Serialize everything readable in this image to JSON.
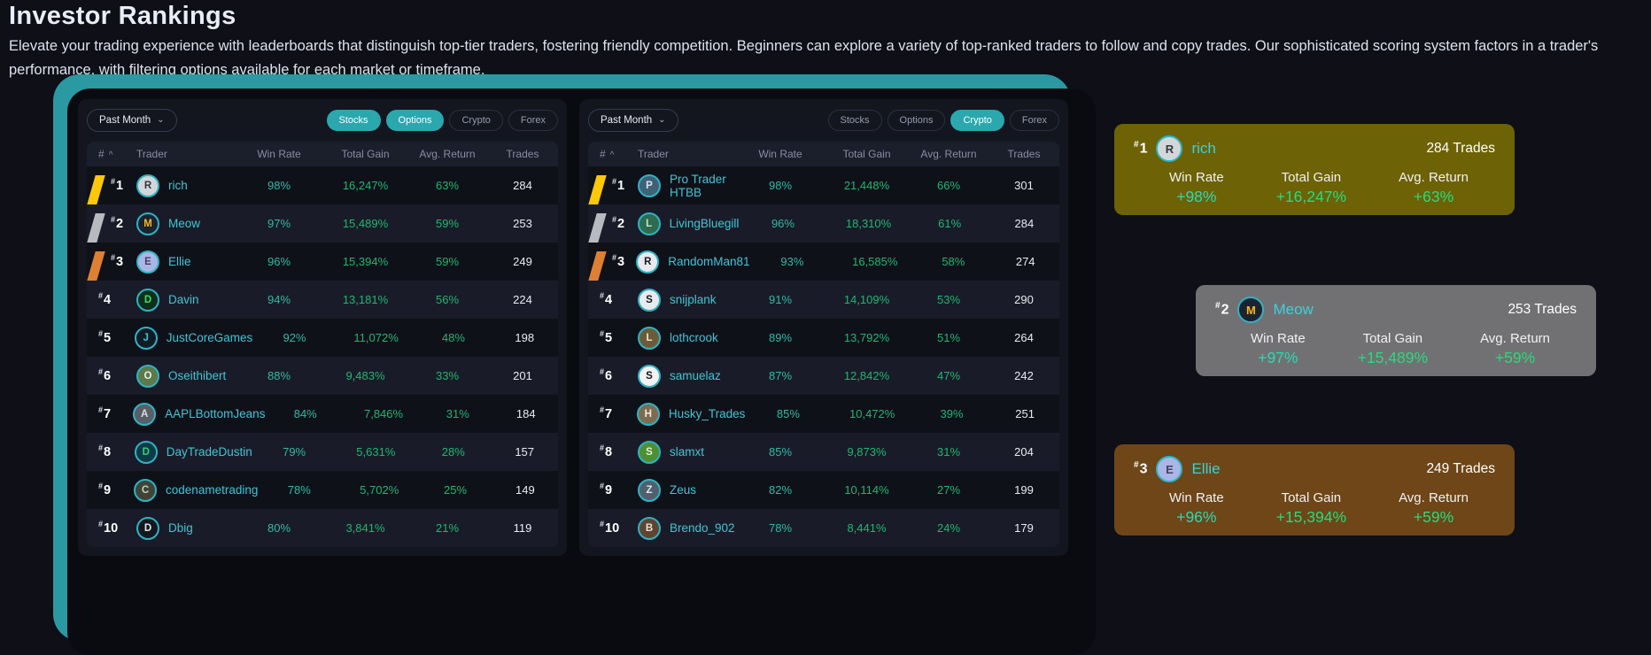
{
  "page": {
    "title": "Investor Rankings",
    "description": "Elevate your trading experience with leaderboards that distinguish top-tier traders, fostering friendly competition. Beginners can explore a variety of top-ranked traders to follow and copy trades. Our sophisticated scoring system factors in a trader's performance, with filtering options available for each market or timeframe."
  },
  "icons": {
    "chevron_down": "⌄",
    "sort_caret": "^"
  },
  "theme": {
    "accent_teal": "#2a99a1",
    "tab_active": "#2aa8ae",
    "win_rate_teal": "#2fb9a4",
    "gain_green": "#1eb671",
    "medal_gold": "#fdc70a",
    "medal_silver": "#b7babf",
    "medal_bronze": "#dd8033"
  },
  "leaderboards": [
    {
      "timeframe_filter": "Past Month",
      "tabs": [
        {
          "label": "Stocks",
          "active": true
        },
        {
          "label": "Options",
          "active": true
        },
        {
          "label": "Crypto",
          "active": false
        },
        {
          "label": "Forex",
          "active": false
        }
      ],
      "columns": [
        "#",
        "Trader",
        "Win Rate",
        "Total Gain",
        "Avg. Return",
        "Trades"
      ],
      "rows": [
        {
          "rank": "1",
          "medal": "gold",
          "trader": "rich",
          "avatar": {
            "bg": "#d3d7da",
            "fg": "#33363c",
            "initial": "R"
          },
          "win_rate": "98%",
          "total_gain": "16,247%",
          "avg_return": "63%",
          "trades": "284"
        },
        {
          "rank": "2",
          "medal": "silver",
          "trader": "Meow",
          "avatar": {
            "bg": "#1c2330",
            "fg": "#f6b81c",
            "initial": "M"
          },
          "win_rate": "97%",
          "total_gain": "15,489%",
          "avg_return": "59%",
          "trades": "253"
        },
        {
          "rank": "3",
          "medal": "bronze",
          "trader": "Ellie",
          "avatar": {
            "bg": "#a9b6e6",
            "fg": "#4a3f65",
            "initial": "E"
          },
          "win_rate": "96%",
          "total_gain": "15,394%",
          "avg_return": "59%",
          "trades": "249"
        },
        {
          "rank": "4",
          "medal": null,
          "trader": "Davin",
          "avatar": {
            "bg": "#0f2f1a",
            "fg": "#3ddc6a",
            "initial": "D"
          },
          "win_rate": "94%",
          "total_gain": "13,181%",
          "avg_return": "56%",
          "trades": "224"
        },
        {
          "rank": "5",
          "medal": null,
          "trader": "JustCoreGames",
          "avatar": {
            "bg": "#101b26",
            "fg": "#39c6d3",
            "initial": "J"
          },
          "win_rate": "92%",
          "total_gain": "11,072%",
          "avg_return": "48%",
          "trades": "198"
        },
        {
          "rank": "6",
          "medal": null,
          "trader": "Oseithibert",
          "avatar": {
            "bg": "#5d7a4a",
            "fg": "#e8eee2",
            "initial": "O"
          },
          "win_rate": "88%",
          "total_gain": "9,483%",
          "avg_return": "33%",
          "trades": "201"
        },
        {
          "rank": "7",
          "medal": null,
          "trader": "AAPLBottomJeans",
          "avatar": {
            "bg": "#5a5e66",
            "fg": "#d9dce2",
            "initial": "A"
          },
          "win_rate": "84%",
          "total_gain": "7,846%",
          "avg_return": "31%",
          "trades": "184"
        },
        {
          "rank": "8",
          "medal": null,
          "trader": "DayTradeDustin",
          "avatar": {
            "bg": "#0e3b46",
            "fg": "#35d07e",
            "initial": "D"
          },
          "win_rate": "79%",
          "total_gain": "5,631%",
          "avg_return": "28%",
          "trades": "157"
        },
        {
          "rank": "9",
          "medal": null,
          "trader": "codenametrading",
          "avatar": {
            "bg": "#3f4536",
            "fg": "#c9cdbf",
            "initial": "C"
          },
          "win_rate": "78%",
          "total_gain": "5,702%",
          "avg_return": "25%",
          "trades": "149"
        },
        {
          "rank": "10",
          "medal": null,
          "trader": "Dbig",
          "avatar": {
            "bg": "#14181f",
            "fg": "#e6e9ef",
            "initial": "D"
          },
          "win_rate": "80%",
          "total_gain": "3,841%",
          "avg_return": "21%",
          "trades": "119"
        }
      ]
    },
    {
      "timeframe_filter": "Past Month",
      "tabs": [
        {
          "label": "Stocks",
          "active": false
        },
        {
          "label": "Options",
          "active": false
        },
        {
          "label": "Crypto",
          "active": true
        },
        {
          "label": "Forex",
          "active": false
        }
      ],
      "columns": [
        "#",
        "Trader",
        "Win Rate",
        "Total Gain",
        "Avg. Return",
        "Trades"
      ],
      "rows": [
        {
          "rank": "1",
          "medal": "gold",
          "trader": "Pro Trader HTBB",
          "avatar": {
            "bg": "#3f6277",
            "fg": "#d7e4ee",
            "initial": "P"
          },
          "win_rate": "98%",
          "total_gain": "21,448%",
          "avg_return": "66%",
          "trades": "301"
        },
        {
          "rank": "2",
          "medal": "silver",
          "trader": "LivingBluegill",
          "avatar": {
            "bg": "#2e6b4f",
            "fg": "#bfe3d0",
            "initial": "L"
          },
          "win_rate": "96%",
          "total_gain": "18,310%",
          "avg_return": "61%",
          "trades": "284"
        },
        {
          "rank": "3",
          "medal": "bronze",
          "trader": "RandomMan81",
          "avatar": {
            "bg": "#e9eaee",
            "fg": "#15181e",
            "initial": "R"
          },
          "win_rate": "93%",
          "total_gain": "16,585%",
          "avg_return": "58%",
          "trades": "274"
        },
        {
          "rank": "4",
          "medal": null,
          "trader": "snijplank",
          "avatar": {
            "bg": "#e9eaee",
            "fg": "#15181e",
            "initial": "S"
          },
          "win_rate": "91%",
          "total_gain": "14,109%",
          "avg_return": "53%",
          "trades": "290"
        },
        {
          "rank": "5",
          "medal": null,
          "trader": "lothcrook",
          "avatar": {
            "bg": "#6b5b39",
            "fg": "#efe6d2",
            "initial": "L"
          },
          "win_rate": "89%",
          "total_gain": "13,792%",
          "avg_return": "51%",
          "trades": "264"
        },
        {
          "rank": "6",
          "medal": null,
          "trader": "samuelaz",
          "avatar": {
            "bg": "#f2f2f2",
            "fg": "#101318",
            "initial": "S"
          },
          "win_rate": "87%",
          "total_gain": "12,842%",
          "avg_return": "47%",
          "trades": "242"
        },
        {
          "rank": "7",
          "medal": null,
          "trader": "Husky_Trades",
          "avatar": {
            "bg": "#7d6c51",
            "fg": "#f3ead9",
            "initial": "H"
          },
          "win_rate": "85%",
          "total_gain": "10,472%",
          "avg_return": "39%",
          "trades": "251"
        },
        {
          "rank": "8",
          "medal": null,
          "trader": "slamxt",
          "avatar": {
            "bg": "#4e8f33",
            "fg": "#dff0d4",
            "initial": "S"
          },
          "win_rate": "85%",
          "total_gain": "9,873%",
          "avg_return": "31%",
          "trades": "204"
        },
        {
          "rank": "9",
          "medal": null,
          "trader": "Zeus",
          "avatar": {
            "bg": "#51606f",
            "fg": "#dfe7ee",
            "initial": "Z"
          },
          "win_rate": "82%",
          "total_gain": "10,114%",
          "avg_return": "27%",
          "trades": "199"
        },
        {
          "rank": "10",
          "medal": null,
          "trader": "Brendo_902",
          "avatar": {
            "bg": "#5f4432",
            "fg": "#eadfd5",
            "initial": "B"
          },
          "win_rate": "78%",
          "total_gain": "8,441%",
          "avg_return": "24%",
          "trades": "179"
        }
      ]
    }
  ],
  "top_cards": [
    {
      "rank": "1",
      "name": "rich",
      "trades_label": "284 Trades",
      "bg_color": "#6d6206",
      "avatar": {
        "bg": "#d3d7da",
        "fg": "#33363c",
        "initial": "R"
      },
      "stats": [
        {
          "label": "Win Rate",
          "value": "+98%",
          "color": "#2fd8b2"
        },
        {
          "label": "Total Gain",
          "value": "+16,247%",
          "color": "#2bd97d"
        },
        {
          "label": "Avg. Return",
          "value": "+63%",
          "color": "#2bd97d"
        }
      ]
    },
    {
      "rank": "2",
      "name": "Meow",
      "trades_label": "253 Trades",
      "bg_color": "#717174",
      "avatar": {
        "bg": "#1c2330",
        "fg": "#f6b81c",
        "initial": "M"
      },
      "stats": [
        {
          "label": "Win Rate",
          "value": "+97%",
          "color": "#2fd8b2"
        },
        {
          "label": "Total Gain",
          "value": "+15,489%",
          "color": "#2bd97d"
        },
        {
          "label": "Avg. Return",
          "value": "+59%",
          "color": "#2bd97d"
        }
      ]
    },
    {
      "rank": "3",
      "name": "Ellie",
      "trades_label": "249 Trades",
      "bg_color": "#6e4617",
      "avatar": {
        "bg": "#a9b6e6",
        "fg": "#4a3f65",
        "initial": "E"
      },
      "stats": [
        {
          "label": "Win Rate",
          "value": "+96%",
          "color": "#2fd8b2"
        },
        {
          "label": "Total Gain",
          "value": "+15,394%",
          "color": "#2bd97d"
        },
        {
          "label": "Avg. Return",
          "value": "+59%",
          "color": "#2bd97d"
        }
      ]
    }
  ]
}
